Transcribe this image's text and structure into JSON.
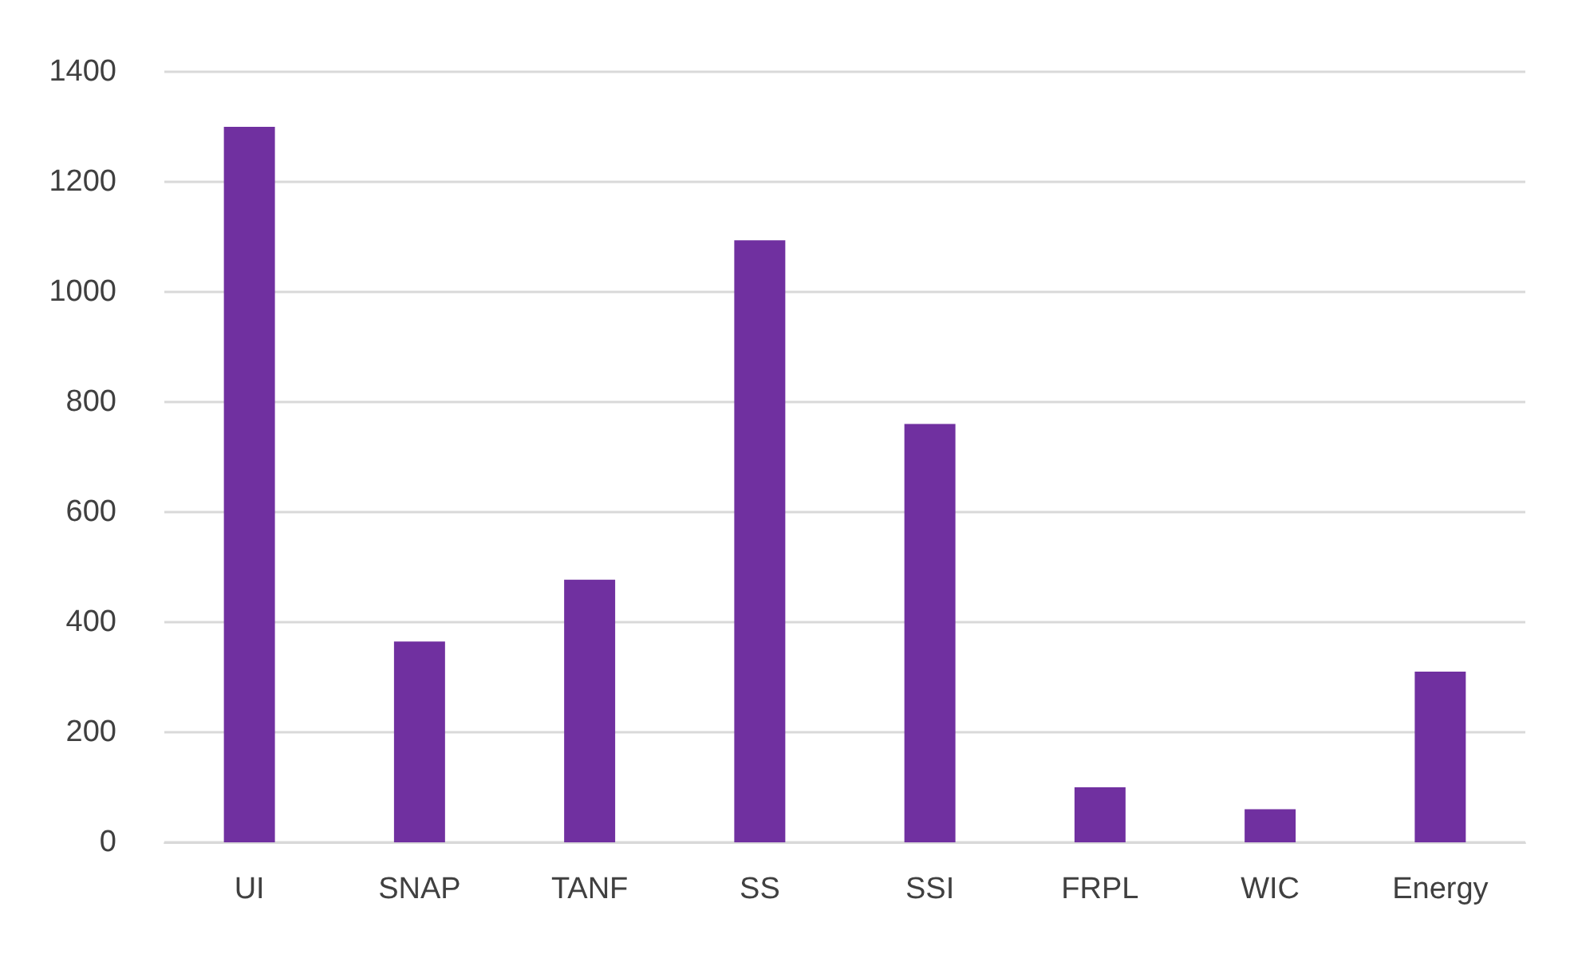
{
  "chart_data": {
    "type": "bar",
    "categories": [
      "UI",
      "SNAP",
      "TANF",
      "SS",
      "SSI",
      "FRPL",
      "WIC",
      "Energy"
    ],
    "values": [
      1300,
      365,
      477,
      1094,
      760,
      100,
      60,
      310
    ],
    "color": "#7030a0",
    "ylim": [
      0,
      1400
    ],
    "yticks": [
      0,
      200,
      400,
      600,
      800,
      1000,
      1200,
      1400
    ],
    "grid": "y"
  }
}
